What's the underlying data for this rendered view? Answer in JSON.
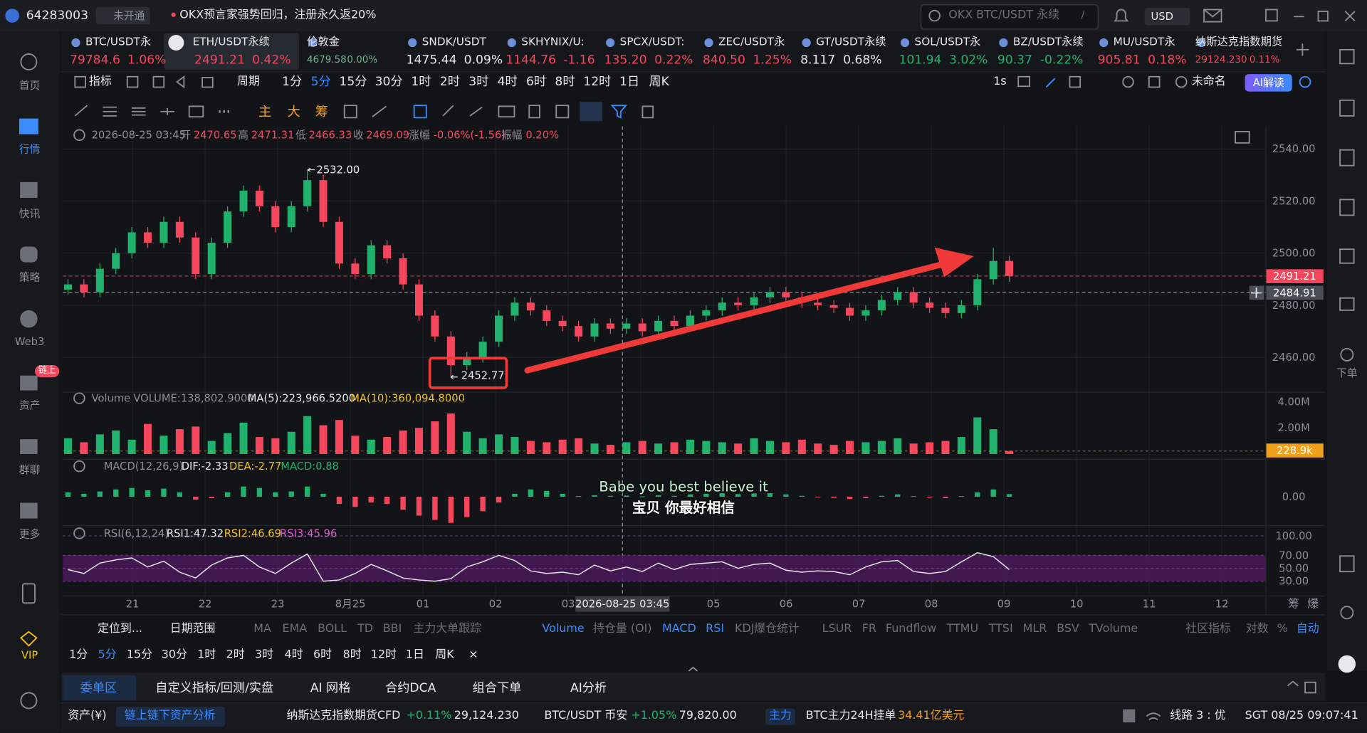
{
  "top_bar": {
    "account": "64283003",
    "status": "未开通",
    "notice": "OKX预言家强势回归，注册永久返20%",
    "search": "OKX BTC/USDT 永续",
    "search_key": "/",
    "currency": "USD"
  },
  "sidebar": [
    "首页",
    "行情",
    "快讯",
    "策略",
    "Web3",
    "资产",
    "群聊",
    "更多",
    "VIP"
  ],
  "sidebar_badge": "链上",
  "right_sidebar": "下单",
  "tickers": [
    {
      "name": "BTC/USDT永",
      "price": "79784.6",
      "change": "1.06%",
      "color": "#f6465d"
    },
    {
      "name": "ETH/USDT永续",
      "price": "2491.21",
      "change": "0.42%",
      "color": "#f6465d"
    },
    {
      "name": "伦敦金",
      "price": "4679.58",
      "change": "0.00%",
      "color": "#6fb58f"
    },
    {
      "name": "SNDK/USDT",
      "price": "1475.44",
      "change": "0.09%",
      "color": "#e6e8ec"
    },
    {
      "name": "SKHYNIX/U:",
      "price": "1144.76",
      "change": "-1.16",
      "color": "#f6465d"
    },
    {
      "name": "SPCX/USDT:",
      "price": "135.20",
      "change": "0.22%",
      "color": "#f6465d"
    },
    {
      "name": "ZEC/USDT永",
      "price": "840.50",
      "change": "1.25%",
      "color": "#f6465d"
    },
    {
      "name": "GT/USDT永续",
      "price": "8.117",
      "change": "0.68%",
      "color": "#e6e8ec"
    },
    {
      "name": "SOL/USDT永",
      "price": "101.94",
      "change": "3.02%",
      "color": "#20b26c"
    },
    {
      "name": "BZ/USDT永续",
      "price": "90.37",
      "change": "-0.22%",
      "color": "#20b26c"
    },
    {
      "name": "MU/USDT永",
      "price": "905.81",
      "change": "0.18%",
      "color": "#f6465d"
    },
    {
      "name": "纳斯达克指数期货",
      "price": "29124.230",
      "change": "0.11%",
      "color": "#f6465d"
    }
  ],
  "toolbar": {
    "indicator": "指标",
    "period": "周期",
    "intervals": [
      "1分",
      "5分",
      "15分",
      "30分",
      "1时",
      "2时",
      "3时",
      "4时",
      "6时",
      "8时",
      "12时",
      "1日",
      "周K"
    ],
    "speed": "1s",
    "layout_name": "未命名",
    "ai": "AI解读"
  },
  "draw_tools": [
    "主",
    "大",
    "筹"
  ],
  "ohlc_info": {
    "time": "2026-08-25 03:45",
    "items": [
      {
        "label": "开",
        "value": "2470.65"
      },
      {
        "label": "高",
        "value": "2471.31"
      },
      {
        "label": "低",
        "value": "2466.33"
      },
      {
        "label": "收",
        "value": "2469.09"
      },
      {
        "label": "涨幅",
        "value": "-0.06%(-1.56)"
      },
      {
        "label": "振幅",
        "value": "0.20%"
      }
    ]
  },
  "volume_legend": [
    {
      "text": "Volume",
      "color": "#8a8f98"
    },
    {
      "text": "VOLUME:138,802.9000",
      "color": "#8a8f98"
    },
    {
      "text": "MA(5):223,966.5200",
      "color": "#e6e8ec"
    },
    {
      "text": "MA(10):360,094.8000",
      "color": "#f0c419"
    }
  ],
  "macd_legend": [
    {
      "text": "MACD(12,26,9)",
      "color": "#8a8f98"
    },
    {
      "text": "DIF:-2.33",
      "color": "#e6e8ec"
    },
    {
      "text": "DEA:-2.77",
      "color": "#f0c419"
    },
    {
      "text": "MACD:0.88",
      "color": "#20b26c"
    }
  ],
  "rsi_legend": [
    {
      "text": "RSI(6,12,24)",
      "color": "#8a8f98"
    },
    {
      "text": "RSI1:47.32",
      "color": "#e6e8ec"
    },
    {
      "text": "RSI2:46.69",
      "color": "#f0c419"
    },
    {
      "text": "RSI3:45.96",
      "color": "#e05bd0"
    }
  ],
  "subtitles": [
    "Babe you best believe it",
    "宝贝 你最好相信"
  ],
  "chart_data": {
    "type": "candlestick",
    "up_color": "#20b26c",
    "down_color": "#f6465d",
    "ylim": [
      2447.3,
      2547
    ],
    "yticks": [
      {
        "value": 2460,
        "label": "2460.00"
      },
      {
        "value": 2480,
        "label": "2480.00"
      },
      {
        "value": 2500,
        "label": "2500.00"
      },
      {
        "value": 2520,
        "label": "2520.00"
      },
      {
        "value": 2540,
        "label": "2540.00"
      }
    ],
    "grid": true,
    "x_labels": [
      "21",
      "22",
      "23",
      "8月25",
      "01",
      "02",
      "03",
      null,
      "05",
      "06",
      "07",
      "08",
      "09",
      "10",
      "11",
      "12"
    ],
    "x_extra_labels": [
      "筹",
      "爆"
    ],
    "crosshair_time": "2026-08-25 03:45",
    "last_price": 2491.21,
    "crosshair_price": 2484.91,
    "high_annotation": {
      "value": 2532,
      "label": "2532.00"
    },
    "low_annotation": 2452.77,
    "open": [
      2486,
      2488,
      2485,
      2494,
      2500,
      2508,
      2504,
      2512,
      2506,
      2492,
      2504,
      2516,
      2524,
      2518,
      2510,
      2518,
      2528,
      2512,
      2496,
      2492,
      2503,
      2498,
      2488,
      2476,
      2468,
      2457,
      2460,
      2466,
      2476,
      2481,
      2478,
      2474,
      2472,
      2468,
      2473,
      2471,
      2473,
      2470,
      2474,
      2472,
      2476,
      2478,
      2481,
      2480,
      2483,
      2485,
      2483,
      2481,
      2480,
      2479,
      2476,
      2478,
      2482,
      2485,
      2481,
      2479,
      2477,
      2480,
      2490,
      2497
    ],
    "high": [
      2490,
      2490,
      2496,
      2502,
      2510,
      2510,
      2514,
      2514,
      2508,
      2506,
      2518,
      2526,
      2526,
      2520,
      2520,
      2532,
      2530,
      2514,
      2498,
      2505,
      2505,
      2500,
      2490,
      2478,
      2470,
      2462,
      2468,
      2478,
      2483,
      2483,
      2480,
      2476,
      2474,
      2475,
      2475,
      2475,
      2475,
      2476,
      2476,
      2478,
      2480,
      2483,
      2483,
      2485,
      2487,
      2487,
      2485,
      2483,
      2482,
      2481,
      2480,
      2484,
      2487,
      2487,
      2483,
      2481,
      2482,
      2492,
      2502,
      2499
    ],
    "low": [
      2484,
      2483,
      2483,
      2492,
      2498,
      2502,
      2502,
      2504,
      2490,
      2490,
      2502,
      2514,
      2516,
      2508,
      2508,
      2516,
      2510,
      2494,
      2490,
      2490,
      2496,
      2486,
      2474,
      2466,
      2452.77,
      2455,
      2458,
      2464,
      2474,
      2476,
      2472,
      2470,
      2466,
      2466,
      2469,
      2469,
      2468,
      2468,
      2470,
      2470,
      2474,
      2476,
      2478,
      2478,
      2481,
      2481,
      2479,
      2478,
      2477,
      2474,
      2474,
      2476,
      2480,
      2479,
      2477,
      2475,
      2475,
      2478,
      2488,
      2489
    ],
    "close": [
      2488,
      2485,
      2494,
      2500,
      2508,
      2504,
      2512,
      2506,
      2492,
      2504,
      2516,
      2524,
      2518,
      2510,
      2518,
      2528,
      2512,
      2496,
      2492,
      2503,
      2498,
      2488,
      2476,
      2468,
      2457,
      2460,
      2466,
      2476,
      2481,
      2478,
      2474,
      2472,
      2468,
      2473,
      2471,
      2473,
      2470,
      2474,
      2472,
      2476,
      2478,
      2481,
      2480,
      2483,
      2485,
      2483,
      2481,
      2480,
      2479,
      2476,
      2478,
      2482,
      2485,
      2481,
      2479,
      2477,
      2480,
      2490,
      2497,
      2491.21
    ],
    "volume": {
      "ylim": [
        0,
        4600000
      ],
      "yticks": [
        {
          "value": 2000000,
          "label": "2.00M"
        },
        {
          "value": 4000000,
          "label": "4.00M"
        }
      ],
      "last": {
        "value": 228900,
        "label": "228.9k"
      },
      "values": [
        1200000,
        900000,
        1500000,
        1800000,
        1100000,
        2300000,
        1400000,
        1900000,
        2100000,
        1000000,
        1600000,
        2400000,
        1300000,
        1200000,
        1700000,
        2900000,
        2200000,
        2600000,
        1400000,
        1100000,
        1300000,
        1800000,
        2000000,
        2500000,
        3100000,
        1700000,
        1200000,
        1500000,
        1300000,
        1000000,
        900000,
        1100000,
        1200000,
        800000,
        700000,
        900000,
        1000000,
        800000,
        900000,
        1100000,
        1000000,
        900000,
        800000,
        1200000,
        1000000,
        900000,
        1100000,
        800000,
        700000,
        1000000,
        900000,
        1000000,
        1200000,
        800000,
        900000,
        1000000,
        1300000,
        2800000,
        1900000,
        228900
      ]
    },
    "macd": {
      "ylim": [
        -12,
        12
      ],
      "yticks": [
        {
          "value": 0,
          "label": "0.00"
        }
      ],
      "values": [
        1.5,
        1.0,
        1.8,
        2.5,
        3.0,
        2.2,
        2.8,
        1.5,
        -1.0,
        -0.5,
        1.5,
        3.5,
        3.0,
        1.5,
        1.8,
        3.5,
        1.0,
        -2.5,
        -3.5,
        -2.0,
        -2.5,
        -4.5,
        -6.5,
        -8.0,
        -9.0,
        -7.0,
        -5.0,
        -2.0,
        1.0,
        2.5,
        2.0,
        1.0,
        0.2,
        0.5,
        0.3,
        0.4,
        0.1,
        0.5,
        0.3,
        0.8,
        1.0,
        1.2,
        0.9,
        1.1,
        1.2,
        0.8,
        0.3,
        -0.2,
        -0.4,
        -0.8,
        -0.5,
        0.3,
        0.8,
        0.2,
        -0.3,
        -0.5,
        0.2,
        1.5,
        2.5,
        0.88
      ]
    },
    "rsi": {
      "ylim": [
        0,
        100
      ],
      "yticks": [
        {
          "value": 30,
          "label": "30.00"
        },
        {
          "value": 50,
          "label": "50.00"
        },
        {
          "value": 70,
          "label": "70.00"
        },
        {
          "value": 100,
          "label": "100.00"
        }
      ],
      "values": [
        48,
        42,
        58,
        63,
        66,
        52,
        61,
        44,
        35,
        55,
        66,
        70,
        52,
        42,
        58,
        72,
        30,
        32,
        42,
        56,
        46,
        35,
        32,
        30,
        34,
        52,
        60,
        70,
        62,
        46,
        42,
        44,
        40,
        55,
        46,
        52,
        45,
        58,
        48,
        56,
        58,
        60,
        50,
        56,
        58,
        47,
        44,
        46,
        45,
        40,
        52,
        60,
        62,
        45,
        42,
        45,
        60,
        74,
        68,
        48
      ]
    }
  },
  "indicator_bar": {
    "locate": "定位到...",
    "date_range": "日期范围",
    "items": [
      {
        "label": "MA",
        "active": false
      },
      {
        "label": "EMA",
        "active": false
      },
      {
        "label": "BOLL",
        "active": false
      },
      {
        "label": "TD",
        "active": false
      },
      {
        "label": "BBI",
        "active": false
      },
      {
        "label": "主力大单跟踪",
        "active": false
      },
      {
        "label": "Volume",
        "active": true
      },
      {
        "label": "持仓量 (OI)",
        "active": false
      },
      {
        "label": "MACD",
        "active": true
      },
      {
        "label": "RSI",
        "active": true
      },
      {
        "label": "KDJ",
        "active": false
      },
      {
        "label": "爆仓统计",
        "active": false
      },
      {
        "label": "LSUR",
        "active": false
      },
      {
        "label": "FR",
        "active": false
      },
      {
        "label": "Fundflow",
        "active": false
      },
      {
        "label": "TTMU",
        "active": false
      },
      {
        "label": "TTSI",
        "active": false
      },
      {
        "label": "MLR",
        "active": false
      },
      {
        "label": "BSV",
        "active": false
      },
      {
        "label": "TVolume",
        "active": false
      },
      {
        "label": "社区指标",
        "active": false
      },
      {
        "label": "对数",
        "active": false
      },
      {
        "label": "%",
        "active": false
      },
      {
        "label": "自动",
        "active": true
      }
    ]
  },
  "interval_bar": [
    "1分",
    "5分",
    "15分",
    "30分",
    "1时",
    "2时",
    "3时",
    "4时",
    "6时",
    "8时",
    "12时",
    "1日",
    "周K",
    "×"
  ],
  "tabs": [
    "委单区",
    "自定义指标/回测/实盘",
    "AI 网格",
    "合约DCA",
    "组合下单",
    "AI分析"
  ],
  "status_bar": {
    "assets": "资产(¥)",
    "analysis": "链上链下资产分析",
    "nasdaq": {
      "name": "纳斯达克指数期货CFD",
      "change": "+0.11%",
      "price": "29,124.230"
    },
    "btc": {
      "name": "BTC/USDT 币安",
      "change": "+1.05%",
      "price": "79,820.00"
    },
    "main_tag": "主力",
    "orders": "BTC主力24H挂单",
    "orders_value": "34.41亿美元",
    "line": "线路 3 : 优",
    "clock": "SGT 08/25 09:07:41"
  }
}
